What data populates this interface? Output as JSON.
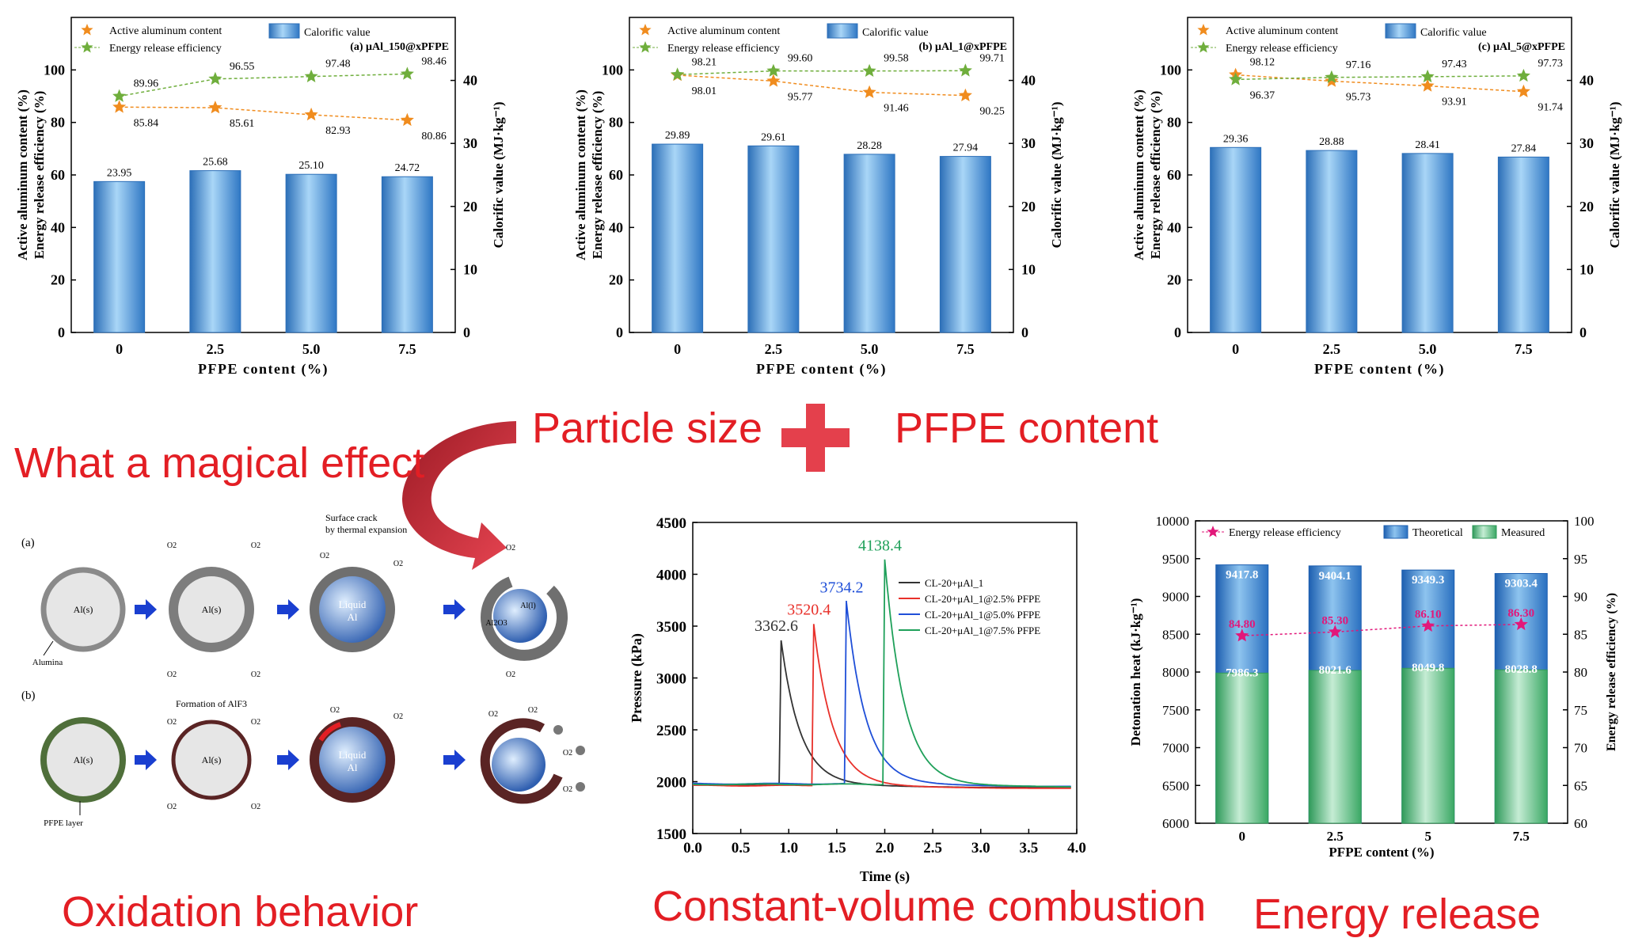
{
  "labels": {
    "particle_size": "Particle size",
    "pfpe_content": "PFPE content",
    "magical": "What a magical effect",
    "oxidation": "Oxidation behavior",
    "constant_volume": "Constant-volume combustion",
    "energy_release": "Energy release"
  },
  "colors": {
    "accent_red": "#e31e24",
    "bar_blue": "#3f8fd6",
    "star_orange": "#f08c1e",
    "star_green": "#6fae3c",
    "measured_green": "#6abf8a",
    "efficiency_magenta": "#e2177a"
  },
  "oxidation": {
    "panel_a": "(a)",
    "panel_b": "(b)",
    "al_s": "Al(s)",
    "al_l": "Al(l)",
    "al2o3": "Al2O3",
    "liquid_al_1": "Liquid",
    "liquid_al_2": "Al",
    "o2": "O2",
    "alumina": "Alumina",
    "pfpe_layer": "PFPE layer",
    "surface_crack_1": "Surface crack",
    "surface_crack_2": "by thermal expansion",
    "formation_alf3": "Formation of AlF3"
  },
  "chart_data": [
    {
      "type": "bar",
      "panel": "(a) μAl_150@xPFPE",
      "categories": [
        "0",
        "2.5",
        "5.0",
        "7.5"
      ],
      "xlabel": "PFPE content (%)",
      "ylabel_left_1": "Active aluminum content (%)",
      "ylabel_left_2": "Energy release efficiency (%)",
      "ylabel_right": "Calorific value (MJ·kg⁻¹)",
      "ylim_left": [
        0,
        120
      ],
      "ylim_right": [
        0,
        50
      ],
      "yticks_left": [
        0,
        20,
        40,
        60,
        80,
        100
      ],
      "yticks_right": [
        0,
        10,
        20,
        30,
        40
      ],
      "legend": [
        "Active aluminum content",
        "Energy release efficiency",
        "Calorific value"
      ],
      "series": [
        {
          "name": "Calorific value",
          "kind": "bar",
          "axis": "right",
          "values": [
            23.95,
            25.68,
            25.1,
            24.72
          ],
          "labels": [
            "23.95",
            "25.68",
            "25.10",
            "24.72"
          ]
        },
        {
          "name": "Active aluminum content",
          "kind": "star-line",
          "axis": "left",
          "values": [
            85.84,
            85.61,
            82.93,
            80.86
          ],
          "labels": [
            "85.84",
            "85.61",
            "82.93",
            "80.86"
          ]
        },
        {
          "name": "Energy release efficiency",
          "kind": "star-line",
          "axis": "left",
          "values": [
            89.96,
            96.55,
            97.48,
            98.46
          ],
          "labels": [
            "89.96",
            "96.55",
            "97.48",
            "98.46"
          ]
        }
      ]
    },
    {
      "type": "bar",
      "panel": "(b) μAl_1@xPFPE",
      "categories": [
        "0",
        "2.5",
        "5.0",
        "7.5"
      ],
      "xlabel": "PFPE content (%)",
      "ylabel_left_1": "Active aluminum content (%)",
      "ylabel_left_2": "Energy release efficiency (%)",
      "ylabel_right": "Calorific value (MJ·kg⁻¹)",
      "ylim_left": [
        0,
        120
      ],
      "ylim_right": [
        0,
        50
      ],
      "yticks_left": [
        0,
        20,
        40,
        60,
        80,
        100
      ],
      "yticks_right": [
        0,
        10,
        20,
        30,
        40
      ],
      "legend": [
        "Active aluminum content",
        "Energy release efficiency",
        "Calorific value"
      ],
      "series": [
        {
          "name": "Calorific value",
          "kind": "bar",
          "axis": "right",
          "values": [
            29.89,
            29.61,
            28.28,
            27.94
          ],
          "labels": [
            "29.89",
            "29.61",
            "28.28",
            "27.94"
          ]
        },
        {
          "name": "Active aluminum content",
          "kind": "star-line",
          "axis": "left",
          "values": [
            98.01,
            95.77,
            91.46,
            90.25
          ],
          "labels": [
            "98.01",
            "95.77",
            "91.46",
            "90.25"
          ]
        },
        {
          "name": "Energy release efficiency",
          "kind": "star-line",
          "axis": "left",
          "values": [
            98.21,
            99.6,
            99.58,
            99.71
          ],
          "labels": [
            "98.21",
            "99.60",
            "99.58",
            "99.71"
          ]
        }
      ]
    },
    {
      "type": "bar",
      "panel": "(c) μAl_5@xPFPE",
      "categories": [
        "0",
        "2.5",
        "5.0",
        "7.5"
      ],
      "xlabel": "PFPE content (%)",
      "ylabel_left_1": "Active aluminum content (%)",
      "ylabel_left_2": "Energy release efficiency (%)",
      "ylabel_right": "Calorific value (MJ·kg⁻¹)",
      "ylim_left": [
        0,
        120
      ],
      "ylim_right": [
        0,
        50
      ],
      "yticks_left": [
        0,
        20,
        40,
        60,
        80,
        100
      ],
      "yticks_right": [
        0,
        10,
        20,
        30,
        40
      ],
      "legend": [
        "Active aluminum content",
        "Energy release efficiency",
        "Calorific value"
      ],
      "series": [
        {
          "name": "Calorific value",
          "kind": "bar",
          "axis": "right",
          "values": [
            29.36,
            28.88,
            28.41,
            27.84
          ],
          "labels": [
            "29.36",
            "28.88",
            "28.41",
            "27.84"
          ]
        },
        {
          "name": "Active aluminum content",
          "kind": "star-line",
          "axis": "left",
          "values": [
            98.12,
            95.73,
            93.91,
            91.74
          ],
          "labels": [
            "98.12",
            "95.73",
            "93.91",
            "91.74"
          ]
        },
        {
          "name": "Energy release efficiency",
          "kind": "star-line",
          "axis": "left",
          "values": [
            96.37,
            97.16,
            97.43,
            97.73
          ],
          "labels": [
            "96.37",
            "97.16",
            "97.43",
            "97.73"
          ]
        }
      ]
    },
    {
      "type": "line",
      "panel": "Constant-volume combustion",
      "xlabel": "Time (s)",
      "ylabel": "Pressure (kPa)",
      "xlim": [
        0,
        4
      ],
      "ylim": [
        1500,
        4500
      ],
      "xticks": [
        0.0,
        0.5,
        1.0,
        1.5,
        2.0,
        2.5,
        3.0,
        3.5,
        4.0
      ],
      "xtick_labels": [
        "0.0",
        "0.5",
        "1.0",
        "1.5",
        "2.0",
        "2.5",
        "3.0",
        "3.5",
        "4.0"
      ],
      "yticks": [
        1500,
        2000,
        2500,
        3000,
        3500,
        4000,
        4500
      ],
      "baseline": 1970,
      "legend_placement": "top-right",
      "series": [
        {
          "name": "CL-20+μAl_1",
          "color": "#333333",
          "peak_time": 0.92,
          "peak": 3362.6,
          "peak_label": "3362.6"
        },
        {
          "name": "CL-20+μAl_1@2.5% PFPE",
          "color": "#e8302a",
          "peak_time": 1.26,
          "peak": 3520.4,
          "peak_label": "3520.4"
        },
        {
          "name": "CL-20+μAl_1@5.0% PFPE",
          "color": "#1f4fd8",
          "peak_time": 1.6,
          "peak": 3734.2,
          "peak_label": "3734.2"
        },
        {
          "name": "CL-20+μAl_1@7.5% PFPE",
          "color": "#1fa05a",
          "peak_time": 2.0,
          "peak": 4138.4,
          "peak_label": "4138.4"
        }
      ]
    },
    {
      "type": "bar",
      "panel": "Energy release",
      "categories": [
        "0",
        "2.5",
        "5",
        "7.5"
      ],
      "xlabel": "PFPE content (%)",
      "ylabel_left": "Detonation heat (kJ·kg⁻¹)",
      "ylabel_right": "Energy release efficiency (%)",
      "ylim_left": [
        6000,
        10000
      ],
      "ylim_right": [
        60,
        100
      ],
      "yticks_left": [
        6000,
        6500,
        7000,
        7500,
        8000,
        8500,
        9000,
        9500,
        10000
      ],
      "yticks_right": [
        60,
        65,
        70,
        75,
        80,
        85,
        90,
        95,
        100
      ],
      "legend": [
        "Energy release efficiency",
        "Theoretical",
        "Measured"
      ],
      "series": [
        {
          "name": "Theoretical",
          "kind": "bar",
          "values": [
            9417.8,
            9404.1,
            9349.3,
            9303.4
          ],
          "labels": [
            "9417.8",
            "9404.1",
            "9349.3",
            "9303.4"
          ]
        },
        {
          "name": "Measured",
          "kind": "bar",
          "values": [
            7986.3,
            8021.6,
            8049.8,
            8028.8
          ],
          "labels": [
            "7986.3",
            "8021.6",
            "8049.8",
            "8028.8"
          ]
        },
        {
          "name": "Energy release efficiency",
          "kind": "star-line",
          "axis": "right",
          "values": [
            84.8,
            85.3,
            86.1,
            86.3
          ],
          "labels": [
            "84.80",
            "85.30",
            "86.10",
            "86.30"
          ]
        }
      ]
    }
  ]
}
